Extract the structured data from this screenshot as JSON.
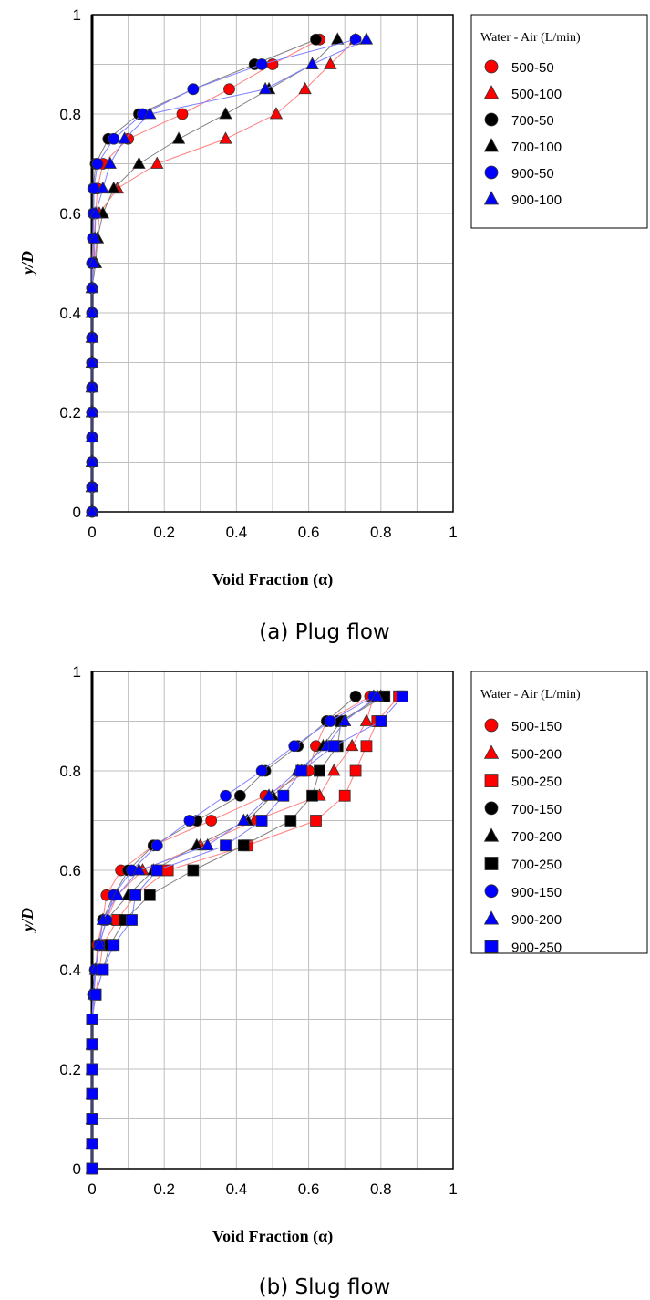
{
  "chart_data": [
    {
      "type": "scatter",
      "caption": "(a) Plug flow",
      "xlabel": "Void Fraction (α)",
      "ylabel": "y/D",
      "xlim": [
        0,
        1
      ],
      "ylim": [
        0,
        1
      ],
      "xticks": [
        "0",
        "0.2",
        "0.4",
        "0.6",
        "0.8",
        "1"
      ],
      "yticks": [
        "0",
        "0.2",
        "0.4",
        "0.6",
        "0.8",
        "1"
      ],
      "grid": true,
      "legend_title": "Water - Air (L/min)",
      "legend_position": "right",
      "y": [
        0,
        0.05,
        0.1,
        0.15,
        0.2,
        0.25,
        0.3,
        0.35,
        0.4,
        0.45,
        0.5,
        0.55,
        0.6,
        0.65,
        0.7,
        0.75,
        0.8,
        0.85,
        0.9,
        0.95
      ],
      "series": [
        {
          "name": "500-50",
          "color": "#ff0000",
          "marker": "circle",
          "x": [
            0,
            0,
            0,
            0,
            0,
            0,
            0,
            0,
            0,
            0,
            0.003,
            0.005,
            0.01,
            0.015,
            0.03,
            0.1,
            0.25,
            0.38,
            0.5,
            0.63
          ]
        },
        {
          "name": "500-100",
          "color": "#ff0000",
          "marker": "triangle",
          "x": [
            0,
            0,
            0,
            0,
            0,
            0,
            0,
            0,
            0,
            0,
            0.005,
            0.015,
            0.02,
            0.07,
            0.18,
            0.37,
            0.51,
            0.59,
            0.66,
            0.73
          ]
        },
        {
          "name": "700-50",
          "color": "#000000",
          "marker": "circle",
          "x": [
            0,
            0,
            0,
            0,
            0,
            0,
            0,
            0,
            0,
            0,
            0,
            0.002,
            0.003,
            0.003,
            0.01,
            0.045,
            0.13,
            0.28,
            0.45,
            0.62
          ]
        },
        {
          "name": "700-100",
          "color": "#000000",
          "marker": "triangle",
          "x": [
            0,
            0,
            0,
            0,
            0,
            0,
            0,
            0,
            0,
            0,
            0.01,
            0.015,
            0.03,
            0.06,
            0.13,
            0.24,
            0.37,
            0.49,
            0.61,
            0.68
          ]
        },
        {
          "name": "900-50",
          "color": "#0000ff",
          "marker": "circle",
          "x": [
            0,
            0,
            0,
            0,
            0,
            0,
            0,
            0,
            0,
            0,
            0,
            0.003,
            0.005,
            0.005,
            0.015,
            0.06,
            0.14,
            0.28,
            0.47,
            0.73
          ]
        },
        {
          "name": "900-100",
          "color": "#0000ff",
          "marker": "triangle",
          "x": [
            0,
            0,
            0,
            0,
            0,
            0,
            0,
            0,
            0,
            0,
            0.005,
            0.008,
            0.01,
            0.03,
            0.05,
            0.09,
            0.16,
            0.48,
            0.61,
            0.76
          ]
        }
      ]
    },
    {
      "type": "scatter",
      "caption": "(b) Slug flow",
      "xlabel": "Void Fraction (α)",
      "ylabel": "y/D",
      "xlim": [
        0,
        1
      ],
      "ylim": [
        0,
        1
      ],
      "xticks": [
        "0",
        "0.2",
        "0.4",
        "0.6",
        "0.8",
        "1"
      ],
      "yticks": [
        "0",
        "0.2",
        "0.4",
        "0.6",
        "0.8",
        "1"
      ],
      "grid": true,
      "legend_title": "Water - Air (L/min)",
      "legend_position": "right",
      "y": [
        0,
        0.05,
        0.1,
        0.15,
        0.2,
        0.25,
        0.3,
        0.35,
        0.4,
        0.45,
        0.5,
        0.55,
        0.6,
        0.65,
        0.7,
        0.75,
        0.8,
        0.85,
        0.9,
        0.95
      ],
      "series": [
        {
          "name": "500-150",
          "color": "#ff0000",
          "marker": "circle",
          "x": [
            0,
            0,
            0,
            0,
            0,
            0,
            0,
            0.003,
            0.01,
            0.015,
            0.03,
            0.04,
            0.08,
            0.17,
            0.33,
            0.48,
            0.6,
            0.62,
            0.65,
            0.77
          ]
        },
        {
          "name": "500-200",
          "color": "#ff0000",
          "marker": "triangle",
          "x": [
            0,
            0,
            0,
            0,
            0,
            0,
            0,
            0.005,
            0.01,
            0.02,
            0.04,
            0.07,
            0.14,
            0.3,
            0.45,
            0.63,
            0.67,
            0.72,
            0.76,
            0.78
          ]
        },
        {
          "name": "500-250",
          "color": "#ff0000",
          "marker": "square",
          "x": [
            0,
            0,
            0,
            0,
            0,
            0,
            0,
            0.01,
            0.02,
            0.03,
            0.07,
            0.12,
            0.21,
            0.43,
            0.62,
            0.7,
            0.73,
            0.76,
            0.79,
            0.85
          ]
        },
        {
          "name": "700-150",
          "color": "#000000",
          "marker": "circle",
          "x": [
            0,
            0,
            0,
            0,
            0,
            0,
            0,
            0.003,
            0.008,
            0.02,
            0.03,
            0.06,
            0.1,
            0.17,
            0.29,
            0.41,
            0.48,
            0.57,
            0.65,
            0.73
          ]
        },
        {
          "name": "700-200",
          "color": "#000000",
          "marker": "triangle",
          "x": [
            0,
            0,
            0,
            0,
            0,
            0,
            0,
            0.005,
            0.01,
            0.02,
            0.04,
            0.1,
            0.17,
            0.29,
            0.43,
            0.5,
            0.58,
            0.64,
            0.69,
            0.8
          ]
        },
        {
          "name": "700-250",
          "color": "#000000",
          "marker": "square",
          "x": [
            0,
            0,
            0,
            0,
            0,
            0,
            0,
            0.01,
            0.03,
            0.05,
            0.09,
            0.16,
            0.28,
            0.42,
            0.55,
            0.61,
            0.63,
            0.68,
            0.69,
            0.81
          ]
        },
        {
          "name": "900-150",
          "color": "#0000ff",
          "marker": "circle",
          "x": [
            0,
            0,
            0,
            0,
            0,
            0,
            0,
            0.003,
            0.008,
            0.02,
            0.04,
            0.06,
            0.11,
            0.18,
            0.27,
            0.37,
            0.47,
            0.56,
            0.66,
            0.78
          ]
        },
        {
          "name": "900-200",
          "color": "#0000ff",
          "marker": "triangle",
          "x": [
            0,
            0,
            0,
            0,
            0,
            0,
            0,
            0.005,
            0.01,
            0.02,
            0.03,
            0.07,
            0.13,
            0.32,
            0.42,
            0.49,
            0.57,
            0.65,
            0.7,
            0.79
          ]
        },
        {
          "name": "900-250",
          "color": "#0000ff",
          "marker": "square",
          "x": [
            0,
            0,
            0,
            0,
            0,
            0,
            0,
            0.01,
            0.03,
            0.06,
            0.11,
            0.12,
            0.18,
            0.37,
            0.47,
            0.53,
            0.58,
            0.67,
            0.8,
            0.86
          ]
        }
      ]
    }
  ]
}
